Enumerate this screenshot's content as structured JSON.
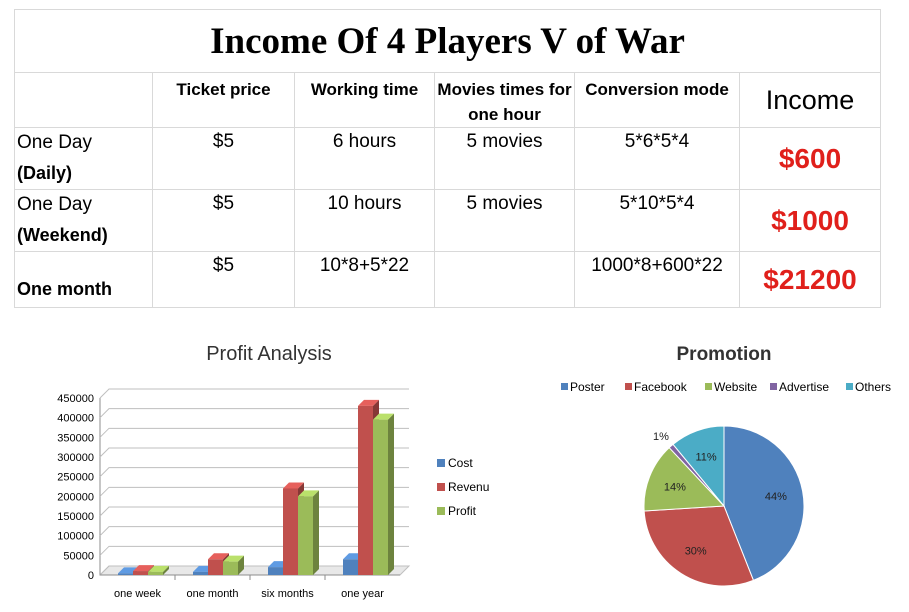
{
  "table": {
    "title": "Income Of 4 Players V of War",
    "headers": [
      "",
      "Ticket price",
      "Working time",
      "Movies times for one hour",
      "Conversion mode",
      "Income"
    ],
    "rows": [
      {
        "label1": "One Day",
        "label2": "(Daily)",
        "ticket": "$5",
        "time": "6 hours",
        "movies": "5 movies",
        "mode": "5*6*5*4",
        "income": "$600"
      },
      {
        "label1": "One Day",
        "label2": "(Weekend)",
        "ticket": "$5",
        "time": "10 hours",
        "movies": "5 movies",
        "mode": "5*10*5*4",
        "income": "$1000"
      },
      {
        "label1": "",
        "label2": "One month",
        "ticket": "$5",
        "time": "10*8+5*22",
        "movies": "",
        "mode": "1000*8+600*22",
        "income": "$21200"
      }
    ]
  },
  "chart_data": [
    {
      "type": "bar",
      "title": "Profit Analysis",
      "categories": [
        "one week",
        "one month",
        "six months",
        "one year"
      ],
      "series": [
        {
          "name": "Cost",
          "color": "#4f81bd",
          "values": [
            4000,
            8000,
            20000,
            40000
          ]
        },
        {
          "name": "Revenu",
          "color": "#c0504d",
          "values": [
            10000,
            40000,
            220000,
            430000
          ]
        },
        {
          "name": "Profit",
          "color": "#9bbb59",
          "values": [
            8000,
            34000,
            200000,
            395000
          ]
        }
      ],
      "yticks": [
        "0",
        "50000",
        "100000",
        "150000",
        "200000",
        "250000",
        "300000",
        "350000",
        "400000",
        "450000"
      ],
      "ylim": [
        0,
        450000
      ],
      "legend": "right",
      "grid": true
    },
    {
      "type": "pie",
      "title": "Promotion",
      "slices": [
        {
          "name": "Poster",
          "value": 44,
          "label": "44%",
          "color": "#4f81bd"
        },
        {
          "name": "Facebook",
          "value": 30,
          "label": "30%",
          "color": "#c0504d"
        },
        {
          "name": "Website",
          "value": 14,
          "label": "14%",
          "color": "#9bbb59"
        },
        {
          "name": "Advertise",
          "value": 1,
          "label": "1%",
          "color": "#8064a2"
        },
        {
          "name": "Others",
          "value": 11,
          "label": "11%",
          "color": "#4bacc6"
        }
      ],
      "legend": "top"
    }
  ]
}
